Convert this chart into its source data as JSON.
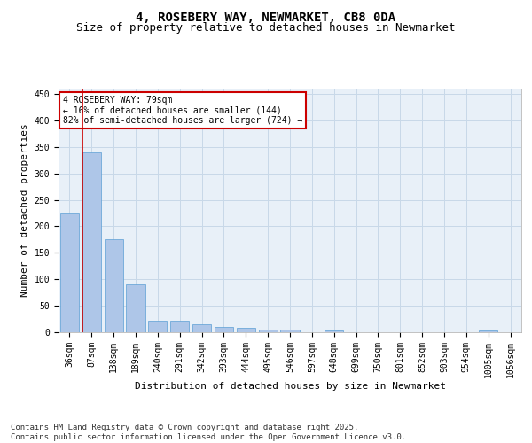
{
  "title_line1": "4, ROSEBERY WAY, NEWMARKET, CB8 0DA",
  "title_line2": "Size of property relative to detached houses in Newmarket",
  "xlabel": "Distribution of detached houses by size in Newmarket",
  "ylabel": "Number of detached properties",
  "categories": [
    "36sqm",
    "87sqm",
    "138sqm",
    "189sqm",
    "240sqm",
    "291sqm",
    "342sqm",
    "393sqm",
    "444sqm",
    "495sqm",
    "546sqm",
    "597sqm",
    "648sqm",
    "699sqm",
    "750sqm",
    "801sqm",
    "852sqm",
    "903sqm",
    "954sqm",
    "1005sqm",
    "1056sqm"
  ],
  "values": [
    225,
    340,
    175,
    90,
    22,
    21,
    15,
    10,
    8,
    5,
    5,
    0,
    4,
    0,
    0,
    0,
    0,
    0,
    0,
    3,
    0
  ],
  "bar_color": "#aec6e8",
  "bar_edge_color": "#5a9fd4",
  "grid_color": "#c8d8e8",
  "bg_color": "#e8f0f8",
  "vline_color": "#cc0000",
  "annotation_text": "4 ROSEBERY WAY: 79sqm\n← 16% of detached houses are smaller (144)\n82% of semi-detached houses are larger (724) →",
  "annotation_box_color": "#cc0000",
  "ylim": [
    0,
    460
  ],
  "yticks": [
    0,
    50,
    100,
    150,
    200,
    250,
    300,
    350,
    400,
    450
  ],
  "footer": "Contains HM Land Registry data © Crown copyright and database right 2025.\nContains public sector information licensed under the Open Government Licence v3.0.",
  "title_fontsize": 10,
  "subtitle_fontsize": 9,
  "axis_label_fontsize": 8,
  "tick_fontsize": 7,
  "footer_fontsize": 6.5
}
